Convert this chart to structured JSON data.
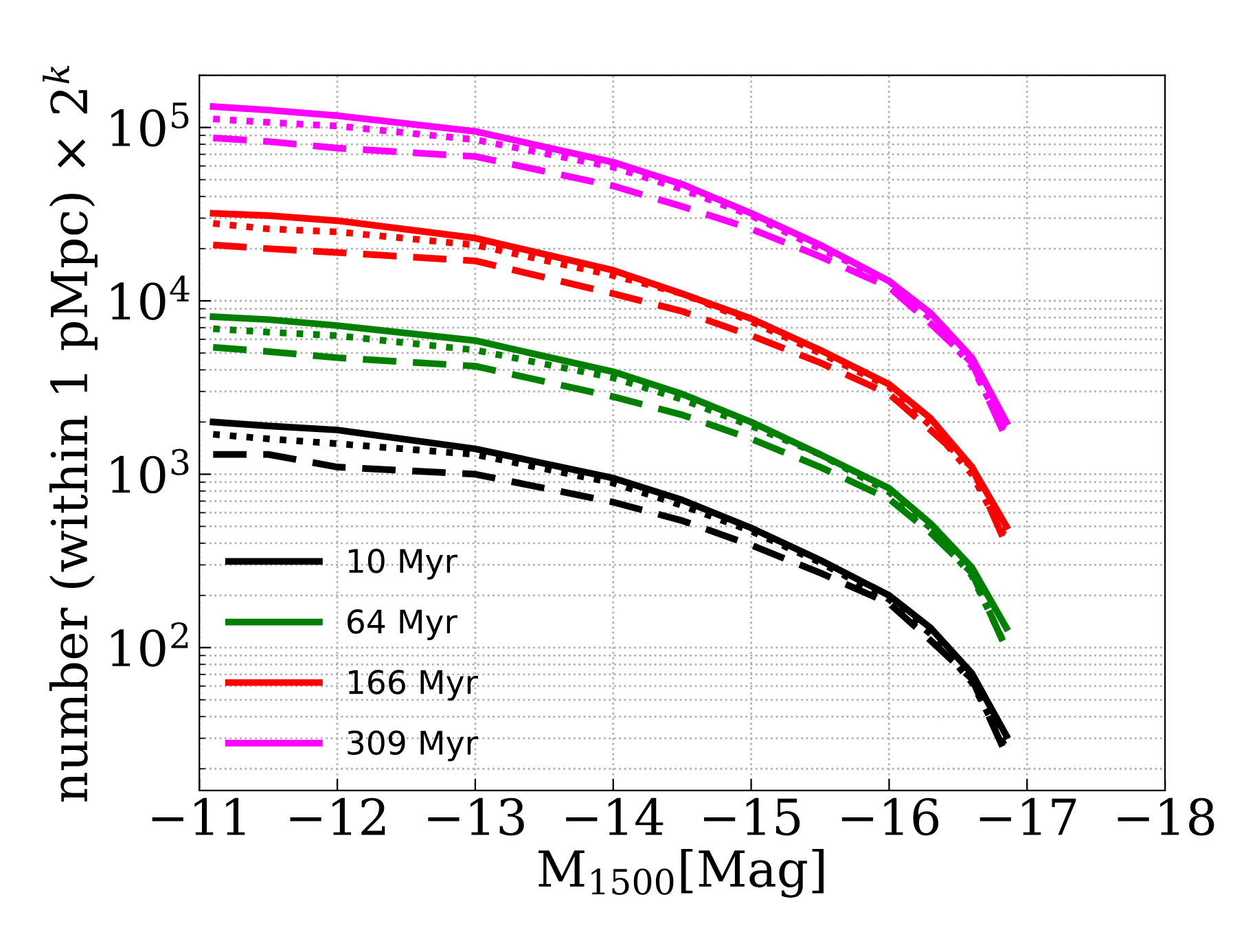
{
  "chart_data": {
    "type": "line",
    "xlabel": "M$_{1500}$[Mag]",
    "ylabel": "number (within 1 pMpc) × 2$^{k}$",
    "x": [
      -11.1,
      -11.5,
      -12,
      -13,
      -14,
      -14.5,
      -15,
      -15.5,
      -16,
      -16.3,
      -16.6,
      -16.85
    ],
    "series": [
      {
        "name": "10 Myr",
        "color": "#000000",
        "line_style": "solid",
        "values": [
          2000,
          1900,
          1800,
          1400,
          950,
          710,
          490,
          320,
          200,
          130,
          71,
          31
        ]
      },
      {
        "color": "#000000",
        "line_style": "dotted",
        "values": [
          1700,
          1600,
          1500,
          1300,
          890,
          660,
          470,
          310,
          190,
          120,
          63,
          26
        ]
      },
      {
        "color": "#000000",
        "line_style": "dashed",
        "values": [
          1300,
          1300,
          1100,
          1000,
          690,
          540,
          390,
          270,
          180,
          110,
          66,
          24
        ]
      },
      {
        "name": "64 Myr",
        "color": "#008000",
        "line_style": "solid",
        "values": [
          8100,
          7800,
          7200,
          5900,
          3900,
          2900,
          2000,
          1300,
          830,
          520,
          290,
          130
        ]
      },
      {
        "color": "#008000",
        "line_style": "dotted",
        "values": [
          6900,
          6600,
          6300,
          5200,
          3600,
          2700,
          1900,
          1300,
          790,
          490,
          260,
          100
        ]
      },
      {
        "color": "#008000",
        "line_style": "dashed",
        "values": [
          5400,
          5100,
          4700,
          4200,
          2800,
          2200,
          1600,
          1100,
          720,
          460,
          270,
          98
        ]
      },
      {
        "name": "166 Myr",
        "color": "#ff0000",
        "line_style": "solid",
        "values": [
          32000,
          31000,
          29000,
          23000,
          15000,
          11000,
          7900,
          5200,
          3300,
          2100,
          1100,
          500
        ]
      },
      {
        "color": "#ff0000",
        "line_style": "dotted",
        "values": [
          28000,
          26000,
          25000,
          21000,
          14000,
          11000,
          7600,
          5000,
          3200,
          1900,
          1000,
          420
        ]
      },
      {
        "color": "#ff0000",
        "line_style": "dashed",
        "values": [
          21000,
          20000,
          19000,
          17000,
          11000,
          8700,
          6300,
          4400,
          2900,
          1800,
          1100,
          390
        ]
      },
      {
        "name": "309 Myr",
        "color": "#ff00ff",
        "line_style": "solid",
        "values": [
          132000,
          126000,
          117000,
          95000,
          63000,
          47000,
          32000,
          21000,
          13000,
          8500,
          4700,
          2000
        ]
      },
      {
        "color": "#ff00ff",
        "line_style": "dotted",
        "values": [
          112000,
          107000,
          102000,
          85000,
          59000,
          44000,
          31000,
          20000,
          13000,
          7900,
          4200,
          1700
        ]
      },
      {
        "color": "#ff00ff",
        "line_style": "dashed",
        "values": [
          87000,
          83000,
          76000,
          68000,
          46000,
          35000,
          26000,
          18000,
          12000,
          7400,
          4400,
          1600
        ]
      }
    ],
    "log": "y",
    "xlim": [
      -11,
      -18
    ],
    "ylim": [
      15,
      200000
    ],
    "xticks": [
      {
        "value": -11,
        "label": "−11"
      },
      {
        "value": -12,
        "label": "−12"
      },
      {
        "value": -13,
        "label": "−13"
      },
      {
        "value": -14,
        "label": "−14"
      },
      {
        "value": -15,
        "label": "−15"
      },
      {
        "value": -16,
        "label": "−16"
      },
      {
        "value": -17,
        "label": "−17"
      },
      {
        "value": -18,
        "label": "−18"
      }
    ],
    "yticks": [
      {
        "value": 100,
        "label": "10$^{2}$"
      },
      {
        "value": 1000,
        "label": "10$^{3}$"
      },
      {
        "value": 10000,
        "label": "10$^{4}$"
      },
      {
        "value": 100000,
        "label": "10$^{5}$"
      }
    ],
    "grid": true,
    "legend": "bottom left"
  }
}
